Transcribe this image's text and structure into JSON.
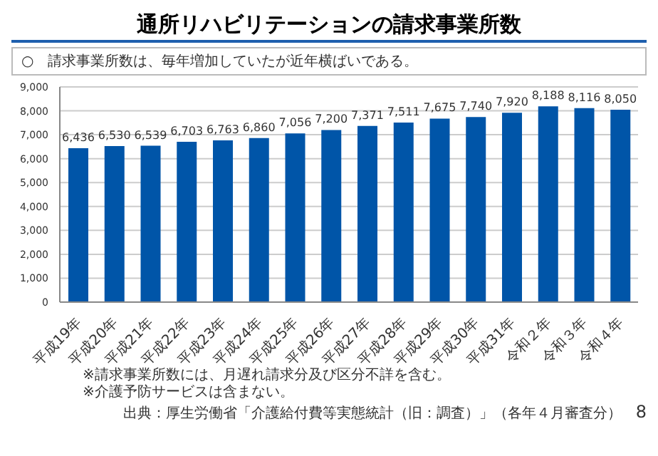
{
  "chart_data": {
    "type": "bar",
    "title": "通所リハビリテーションの請求事業所数",
    "subtitle": "○　請求事業所数は、毎年増加していたが近年横ばいである。",
    "categories": [
      "平成19年",
      "平成20年",
      "平成21年",
      "平成22年",
      "平成23年",
      "平成24年",
      "平成25年",
      "平成26年",
      "平成27年",
      "平成28年",
      "平成29年",
      "平成30年",
      "平成31年",
      "令和２年",
      "令和３年",
      "令和４年"
    ],
    "values": [
      6436,
      6530,
      6539,
      6703,
      6763,
      6860,
      7056,
      7200,
      7371,
      7511,
      7675,
      7740,
      7920,
      8188,
      8116,
      8050
    ],
    "value_labels": [
      "6,436",
      "6,530",
      "6,539",
      "6,703",
      "6,763",
      "6,860",
      "7,056",
      "7,200",
      "7,371",
      "7,511",
      "7,675",
      "7,740",
      "7,920",
      "8,188",
      "8,116",
      "8,050"
    ],
    "color": "#0055a8",
    "ylim": [
      0,
      9000
    ],
    "yticks": [
      0,
      {
        "value": 1000,
        "label": "1,000"
      },
      {
        "value": 2000,
        "label": "2,000"
      },
      {
        "value": 3000,
        "label": "3,000"
      },
      {
        "value": 4000,
        "label": "4,000"
      },
      {
        "value": 5000,
        "label": "5,000"
      },
      {
        "value": 6000,
        "label": "6,000"
      },
      {
        "value": 7000,
        "label": "7,000"
      },
      {
        "value": 8000,
        "label": "8,000"
      },
      {
        "value": 9000,
        "label": "9,000"
      }
    ],
    "grid": "y",
    "annotations": [
      "※請求事業所数には、月遅れ請求分及び区分不詳を含む。",
      "※介護予防サービスは含まない。",
      "出典：厚生労働省「介護給付費等実態統計（旧：調査）」（各年４月審査分）",
      "8"
    ]
  }
}
